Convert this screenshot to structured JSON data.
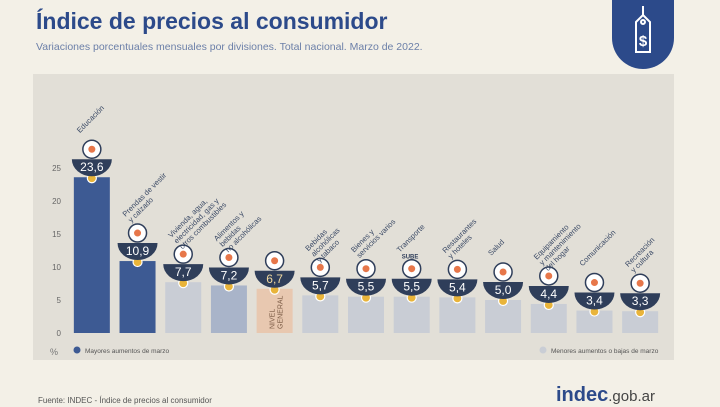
{
  "header": {
    "title": "Índice de precios al consumidor",
    "subtitle": "Variaciones porcentuales mensuales por divisiones. Total nacional. Marzo de 2022."
  },
  "legend": {
    "high": "Mayores aumentos de marzo",
    "low": "Menores aumentos o bajas de marzo"
  },
  "footer": {
    "source": "Fuente: INDEC - Índice de precios al consumidor",
    "brand_main": "indec",
    "brand_suffix": ".gob.ar"
  },
  "icons": {
    "badge": "price-tag-dollar-icon"
  },
  "colors": {
    "title": "#2c4a8a",
    "high": "#3d5a93",
    "low": "#c9cdd5",
    "general": "#e8c8b0",
    "mid": "#a9b4c9",
    "marker": "#e9b43a",
    "panel": "#e2dfd7"
  },
  "chart_data": {
    "type": "bar",
    "y_unit": "%",
    "ylim": [
      0,
      25
    ],
    "yticks": [
      0,
      5,
      10,
      15,
      20,
      25
    ],
    "grid": false,
    "legend_position": "bottom",
    "categories": [
      {
        "label": [
          "Educación"
        ],
        "value": 23.6,
        "display": "23,6",
        "group": "high",
        "icon": "books-icon"
      },
      {
        "label": [
          "Prendas de vestir",
          "y calzado"
        ],
        "value": 10.9,
        "display": "10,9",
        "group": "high",
        "icon": "tshirt-icon"
      },
      {
        "label": [
          "Vivienda, agua,",
          "electricidad, gas y",
          "otros combustibles"
        ],
        "value": 7.7,
        "display": "7,7",
        "group": "low",
        "icon": "lightbulb-icon"
      },
      {
        "label": [
          "Alimentos y",
          "bebidas",
          "no alcohólicas"
        ],
        "value": 7.2,
        "display": "7,2",
        "group": "mid",
        "icon": "food-icon"
      },
      {
        "label": [
          "NIVEL",
          "GENERAL"
        ],
        "value": 6.7,
        "display": "6,7",
        "group": "general",
        "icon": "basket-icon"
      },
      {
        "label": [
          "Bebidas",
          "alcohólicas",
          "y tabaco"
        ],
        "value": 5.7,
        "display": "5,7",
        "group": "low",
        "icon": "drinks-icon"
      },
      {
        "label": [
          "Bienes y",
          "servicios varios"
        ],
        "value": 5.5,
        "display": "5,5",
        "group": "low",
        "icon": "comb-icon"
      },
      {
        "label": [
          "Transporte"
        ],
        "value": 5.5,
        "display": "5,5",
        "group": "low",
        "icon": "bus-icon",
        "tag": "SUBE"
      },
      {
        "label": [
          "Restaurantes",
          "y hoteles"
        ],
        "value": 5.4,
        "display": "5,4",
        "group": "low",
        "icon": "cutlery-icon"
      },
      {
        "label": [
          "Salud"
        ],
        "value": 5.0,
        "display": "5,0",
        "group": "low",
        "icon": "medical-cross-icon"
      },
      {
        "label": [
          "Equipamiento",
          "y mantenimiento",
          "del hogar"
        ],
        "value": 4.4,
        "display": "4,4",
        "group": "low",
        "icon": "house-icon"
      },
      {
        "label": [
          "Comunicación"
        ],
        "value": 3.4,
        "display": "3,4",
        "group": "low",
        "icon": "phone-icon"
      },
      {
        "label": [
          "Recreación",
          "y cultura"
        ],
        "value": 3.3,
        "display": "3,3",
        "group": "low",
        "icon": "sun-umbrella-icon"
      }
    ]
  }
}
